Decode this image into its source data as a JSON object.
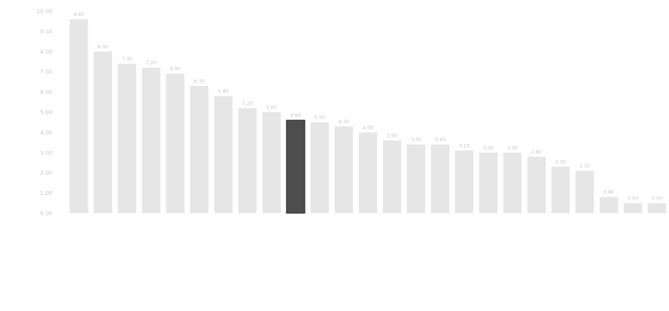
{
  "chart_data": {
    "type": "bar",
    "title": "",
    "xlabel": "",
    "ylabel": "",
    "ylim": [
      0,
      10
    ],
    "yticks": [
      0,
      1,
      2,
      3,
      4,
      5,
      6,
      7,
      8,
      9,
      10
    ],
    "grid": false,
    "legend": "none",
    "categories": [
      "",
      "",
      "",
      "",
      "",
      "",
      "",
      "",
      "",
      "",
      "",
      "",
      "",
      "",
      "",
      "",
      "",
      "",
      "",
      "",
      "",
      "",
      "",
      "",
      ""
    ],
    "values": [
      9.6,
      8.0,
      7.4,
      7.2,
      6.9,
      6.3,
      5.8,
      5.2,
      5.0,
      4.6,
      4.5,
      4.3,
      4.0,
      3.6,
      3.4,
      3.4,
      3.1,
      3.0,
      3.0,
      2.8,
      2.3,
      2.1,
      0.8,
      0.5,
      0.5
    ],
    "highlight_index": 9,
    "colors": {
      "bar": "#e6e6e6",
      "highlight": "#4d4d4d",
      "highlight_stroke": "#2f2f2f",
      "text": "#c9c9c9"
    }
  }
}
